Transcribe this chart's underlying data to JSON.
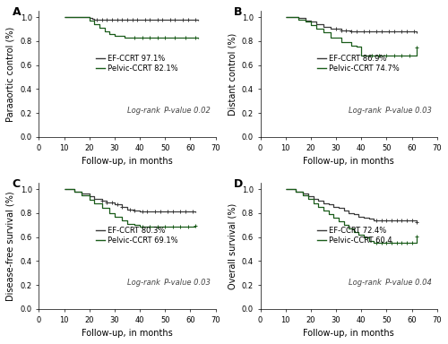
{
  "panels": [
    {
      "label": "A",
      "ylabel": "Paraaortic control (%)",
      "pvalue": "Log-rank  P-value 0.02",
      "ef_label": "EF-CCRT 97.1%",
      "pelvic_label": "Pelvic-CCRT 82.1%",
      "ef_times": [
        10,
        20,
        21,
        22,
        24,
        26,
        30,
        35,
        40,
        45,
        50,
        55,
        60,
        63
      ],
      "ef_survival": [
        1.0,
        0.99,
        0.985,
        0.98,
        0.978,
        0.976,
        0.975,
        0.975,
        0.975,
        0.975,
        0.975,
        0.975,
        0.975,
        0.971
      ],
      "ef_censors": [
        23,
        25,
        27,
        29,
        31,
        33,
        35,
        37,
        39,
        42,
        44,
        47,
        49,
        52,
        54,
        57,
        59,
        62
      ],
      "pelvic_times": [
        10,
        20,
        22,
        24,
        26,
        28,
        30,
        34,
        37,
        40,
        45,
        50,
        55,
        60,
        63
      ],
      "pelvic_survival": [
        1.0,
        0.97,
        0.94,
        0.91,
        0.88,
        0.86,
        0.84,
        0.83,
        0.83,
        0.83,
        0.83,
        0.83,
        0.83,
        0.83,
        0.821
      ],
      "pelvic_censors": [
        38,
        41,
        44,
        47,
        50,
        54,
        58,
        62
      ]
    },
    {
      "label": "B",
      "ylabel": "Distant control (%)",
      "pvalue": "Log-rank  P-value 0.03",
      "ef_label": "EF-CCRT 86.9%",
      "pelvic_label": "Pelvic-CCRT 74.7%",
      "ef_times": [
        10,
        15,
        18,
        20,
        22,
        25,
        28,
        32,
        36,
        40,
        45,
        50,
        55,
        60,
        62
      ],
      "ef_survival": [
        1.0,
        0.99,
        0.97,
        0.96,
        0.94,
        0.92,
        0.9,
        0.89,
        0.88,
        0.88,
        0.88,
        0.88,
        0.88,
        0.88,
        0.869
      ],
      "ef_censors": [
        30,
        32,
        34,
        36,
        38,
        41,
        43,
        46,
        48,
        51,
        53,
        56,
        58,
        61
      ],
      "pelvic_times": [
        10,
        15,
        18,
        20,
        22,
        25,
        28,
        32,
        36,
        38,
        40,
        43,
        45,
        50,
        55,
        60,
        62
      ],
      "pelvic_survival": [
        1.0,
        0.98,
        0.96,
        0.93,
        0.9,
        0.87,
        0.83,
        0.79,
        0.76,
        0.75,
        0.68,
        0.68,
        0.68,
        0.68,
        0.68,
        0.68,
        0.747
      ],
      "pelvic_censors": [
        44,
        47,
        50,
        53,
        56,
        59,
        62
      ]
    },
    {
      "label": "C",
      "ylabel": "Disease-free survival (%)",
      "pvalue": "Log-rank  P-value 0.03",
      "ef_label": "EF-CCRT 80.3%",
      "pelvic_label": "Pelvic-CCRT 69.1%",
      "ef_times": [
        10,
        14,
        17,
        20,
        22,
        25,
        27,
        30,
        33,
        35,
        38,
        40,
        45,
        50,
        55,
        60,
        62
      ],
      "ef_survival": [
        1.0,
        0.98,
        0.96,
        0.94,
        0.92,
        0.9,
        0.89,
        0.87,
        0.85,
        0.83,
        0.82,
        0.81,
        0.81,
        0.81,
        0.81,
        0.81,
        0.803
      ],
      "ef_censors": [
        25,
        27,
        29,
        31,
        33,
        36,
        38,
        41,
        43,
        46,
        48,
        51,
        53,
        56,
        58,
        61
      ],
      "pelvic_times": [
        10,
        14,
        17,
        20,
        22,
        25,
        28,
        30,
        33,
        35,
        38,
        40,
        45,
        50,
        55,
        60,
        62
      ],
      "pelvic_survival": [
        1.0,
        0.98,
        0.95,
        0.91,
        0.88,
        0.84,
        0.8,
        0.77,
        0.74,
        0.71,
        0.7,
        0.69,
        0.69,
        0.69,
        0.69,
        0.69,
        0.691
      ],
      "pelvic_censors": [
        41,
        44,
        47,
        50,
        53,
        56,
        59,
        62
      ]
    },
    {
      "label": "D",
      "ylabel": "Overall survival (%)",
      "pvalue": "Log-rank  P-value 0.04",
      "ef_label": "EF-CCRT 72.4%",
      "pelvic_label": "Pelvic-CCRT 60.4",
      "ef_times": [
        10,
        14,
        17,
        19,
        21,
        23,
        25,
        27,
        29,
        31,
        33,
        35,
        37,
        39,
        41,
        43,
        45,
        50,
        55,
        60,
        62
      ],
      "ef_survival": [
        1.0,
        0.98,
        0.96,
        0.94,
        0.92,
        0.9,
        0.88,
        0.87,
        0.85,
        0.84,
        0.82,
        0.8,
        0.79,
        0.77,
        0.76,
        0.75,
        0.74,
        0.74,
        0.74,
        0.74,
        0.724
      ],
      "ef_censors": [
        46,
        48,
        50,
        52,
        54,
        56,
        58,
        60,
        62
      ],
      "pelvic_times": [
        10,
        14,
        17,
        19,
        21,
        23,
        25,
        27,
        29,
        31,
        33,
        35,
        37,
        39,
        41,
        43,
        45,
        47,
        50,
        55,
        60,
        62
      ],
      "pelvic_survival": [
        1.0,
        0.98,
        0.95,
        0.92,
        0.88,
        0.85,
        0.82,
        0.79,
        0.76,
        0.73,
        0.7,
        0.67,
        0.64,
        0.62,
        0.6,
        0.57,
        0.55,
        0.55,
        0.55,
        0.55,
        0.55,
        0.604
      ],
      "pelvic_censors": [
        46,
        48,
        50,
        52,
        54,
        56,
        58,
        60,
        62
      ]
    }
  ],
  "ef_color": "#3a3a3a",
  "pelvic_color": "#1a5c1a",
  "xlabel": "Follow-up, in months",
  "xlim": [
    0,
    70
  ],
  "ylim": [
    0.0,
    1.05
  ],
  "yticks": [
    0.0,
    0.2,
    0.4,
    0.6,
    0.8,
    1.0
  ],
  "xticks": [
    0,
    10,
    20,
    30,
    40,
    50,
    60,
    70
  ],
  "fontsize": 6.5,
  "label_fontsize": 7,
  "legend_fontsize": 6,
  "pvalue_fontsize": 6,
  "tick_labelsize": 6
}
